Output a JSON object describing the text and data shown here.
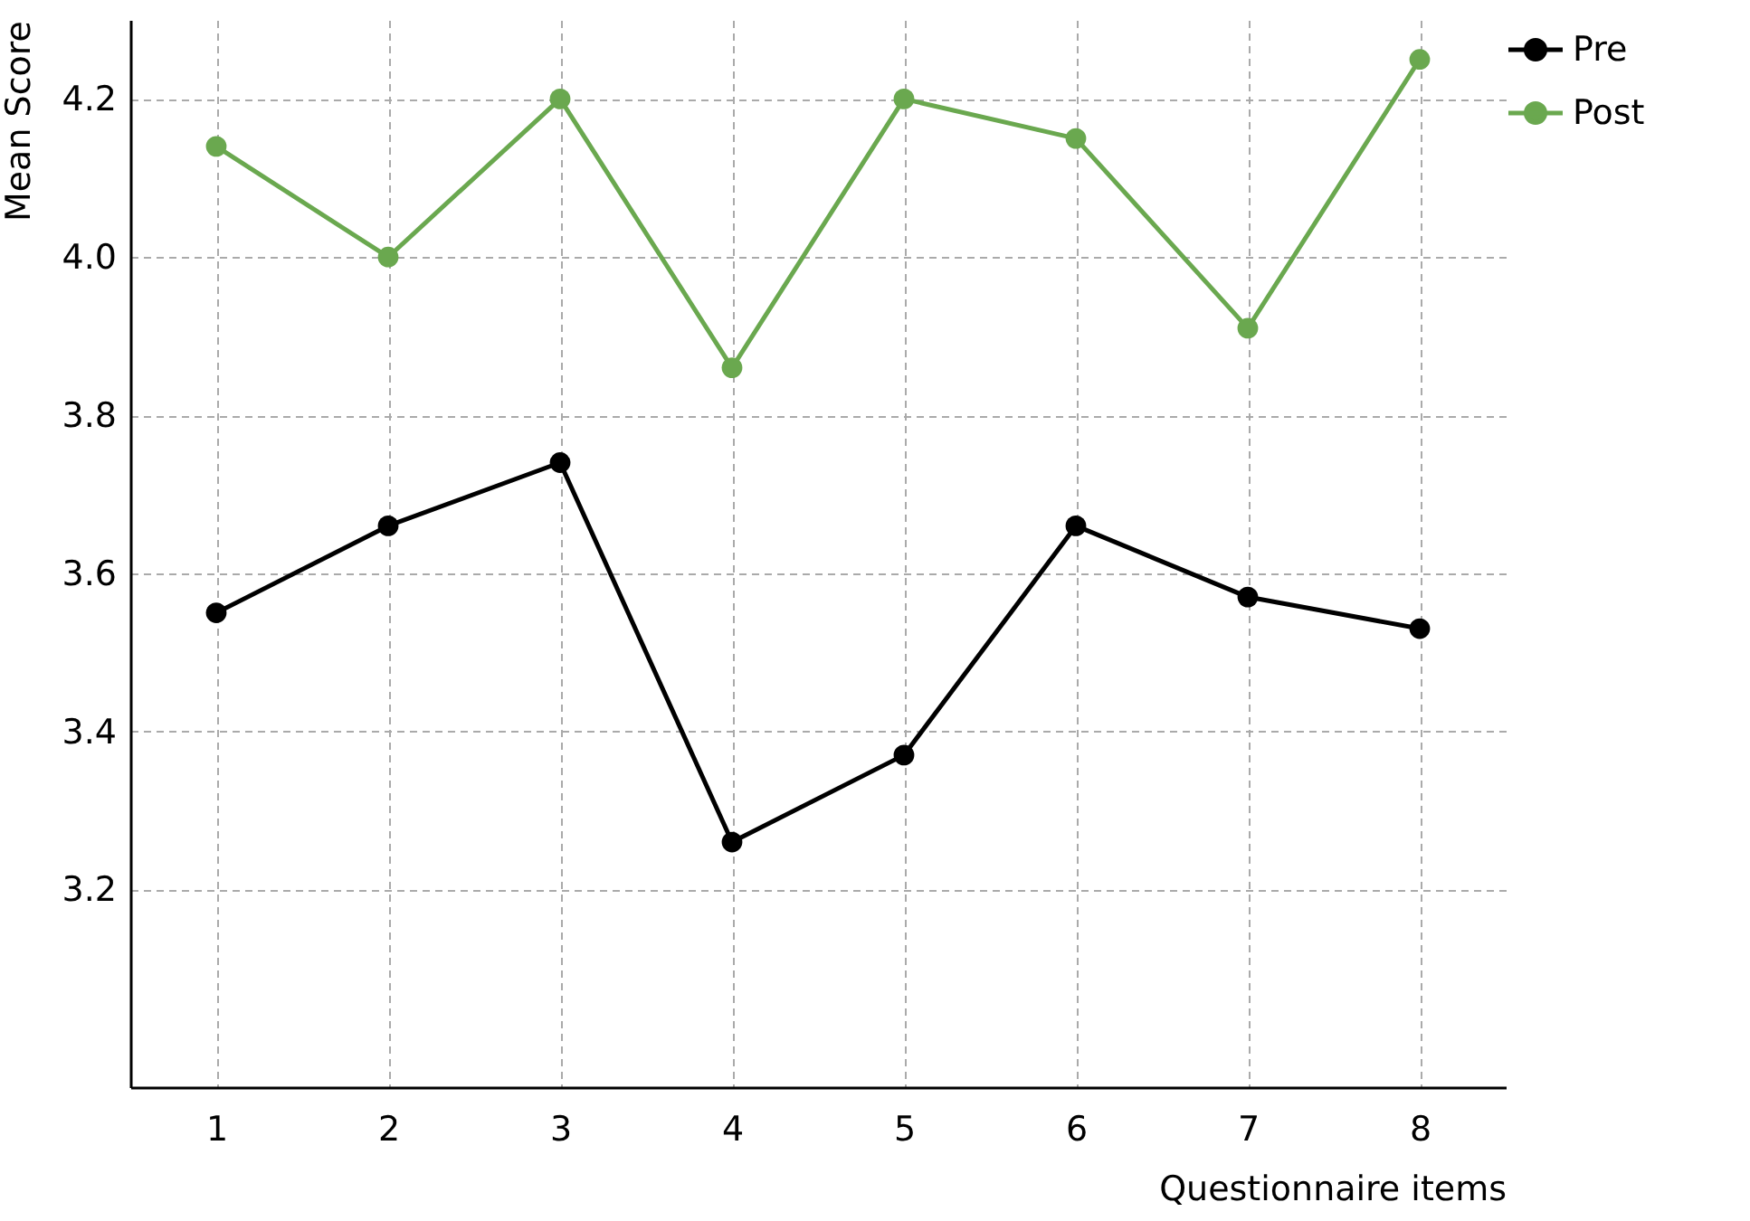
{
  "chart_data": {
    "type": "line",
    "xlabel": "Questionnaire items",
    "ylabel": "Mean Score",
    "categories": [
      "1",
      "2",
      "3",
      "4",
      "5",
      "6",
      "7",
      "8"
    ],
    "series": [
      {
        "name": "Pre",
        "color": "#000000",
        "values": [
          3.55,
          3.66,
          3.74,
          3.26,
          3.37,
          3.66,
          3.57,
          3.53
        ]
      },
      {
        "name": "Post",
        "color": "#6aa84f",
        "values": [
          4.14,
          4.0,
          4.2,
          3.86,
          4.2,
          4.15,
          3.91,
          4.25
        ]
      }
    ],
    "ylim": [
      2.95,
      4.3
    ],
    "yticks": [
      {
        "value": 3.2,
        "label": "3.2"
      },
      {
        "value": 3.4,
        "label": "3.4"
      },
      {
        "value": 3.6,
        "label": "3.6"
      },
      {
        "value": 3.8,
        "label": "3.8"
      },
      {
        "value": 4,
        "label": "4.0"
      },
      {
        "value": 4.2,
        "label": "4.2"
      }
    ],
    "grid": true,
    "legend": "right",
    "marker": "circle",
    "line_style": "solid"
  }
}
